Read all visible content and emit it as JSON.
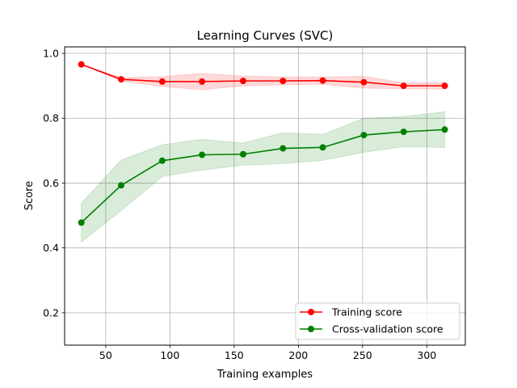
{
  "chart_data": {
    "type": "line",
    "title": "Learning Curves (SVC)",
    "xlabel": "Training examples",
    "ylabel": "Score",
    "xlim": [
      18,
      330
    ],
    "ylim": [
      0.1,
      1.02
    ],
    "xticks": [
      50,
      100,
      150,
      200,
      250,
      300
    ],
    "yticks": [
      0.2,
      0.4,
      0.6,
      0.8,
      1.0
    ],
    "xtick_labels": [
      "50",
      "100",
      "150",
      "200",
      "250",
      "300"
    ],
    "ytick_labels": [
      "0.2",
      "0.4",
      "0.6",
      "0.8",
      "1.0"
    ],
    "grid": true,
    "legend_position": "lower-right",
    "x": [
      31,
      62,
      94,
      125,
      157,
      188,
      219,
      251,
      282,
      314
    ],
    "series": [
      {
        "name": "Training score",
        "color": "#ff0000",
        "values": [
          0.966,
          0.92,
          0.913,
          0.913,
          0.915,
          0.915,
          0.916,
          0.911,
          0.9,
          0.9
        ],
        "lower": [
          0.966,
          0.915,
          0.898,
          0.888,
          0.9,
          0.903,
          0.905,
          0.893,
          0.891,
          0.89
        ],
        "upper": [
          0.966,
          0.925,
          0.928,
          0.938,
          0.93,
          0.927,
          0.927,
          0.929,
          0.909,
          0.91
        ]
      },
      {
        "name": "Cross-validation score",
        "color": "#008000",
        "values": [
          0.478,
          0.593,
          0.669,
          0.687,
          0.689,
          0.707,
          0.71,
          0.748,
          0.758,
          0.765
        ],
        "lower": [
          0.418,
          0.515,
          0.62,
          0.64,
          0.655,
          0.66,
          0.67,
          0.695,
          0.712,
          0.71
        ],
        "upper": [
          0.538,
          0.671,
          0.718,
          0.735,
          0.723,
          0.755,
          0.75,
          0.8,
          0.805,
          0.82
        ]
      }
    ]
  }
}
